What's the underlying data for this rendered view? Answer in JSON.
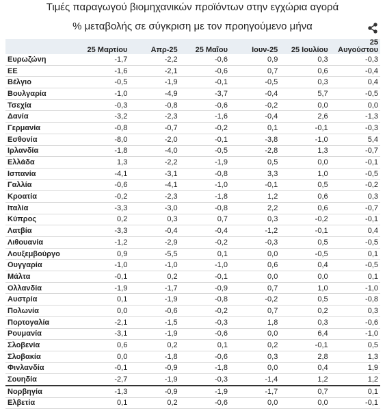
{
  "title": "Τιμές παραγωγού βιομηχανικών προϊόντων στην εγχώρια αγορά",
  "subtitle": "% μεταβολής σε σύγκριση με τον προηγούμενο μήνα",
  "table": {
    "header": [
      "25 Μαρτίου",
      "Απρ-25",
      "25 Μαΐου",
      "Ιουν-25",
      "25 Ιουλίου",
      "25 Αυγούστου"
    ],
    "rows": [
      [
        "Ευρωζώνη",
        "-1,7",
        "-2,2",
        "-0,6",
        "0,9",
        "0,3",
        "-0,3"
      ],
      [
        "ΕΕ",
        "-1,6",
        "-2,1",
        "-0,6",
        "0,7",
        "0,6",
        "-0,4"
      ],
      [
        "Βέλγιο",
        "-0,5",
        "-1,9",
        "-0,1",
        "-0,5",
        "0,3",
        "0,4"
      ],
      [
        "Βουλγαρία",
        "-1,0",
        "-4,9",
        "-3,7",
        "-0,4",
        "5,7",
        "-0,5"
      ],
      [
        "Τσεχία",
        "-0,3",
        "-0,8",
        "-0,6",
        "-0,2",
        "0,0",
        "0,0"
      ],
      [
        "Δανία",
        "-3,2",
        "-2,3",
        "-1,6",
        "-0,4",
        "2,6",
        "-1,3"
      ],
      [
        "Γερμανία",
        "-0,8",
        "-0,7",
        "-0,2",
        "0,1",
        "-0,1",
        "-0,3"
      ],
      [
        "Εσθονία",
        "-8,0",
        "-2,0",
        "-0,1",
        "-3,8",
        "-1,0",
        "5,4"
      ],
      [
        "Ιρλανδία",
        "-1,8",
        "-4,0",
        "-0,5",
        "-2,8",
        "1,3",
        "-0,7"
      ],
      [
        "Ελλάδα",
        "1,3",
        "-2,2",
        "-1,9",
        "0,5",
        "0,0",
        "-0,1"
      ],
      [
        "Ισπανία",
        "-4,1",
        "-3,1",
        "-0,8",
        "3,3",
        "1,0",
        "-0,5"
      ],
      [
        "Γαλλία",
        "-0,6",
        "-4,1",
        "-1,0",
        "-0,1",
        "0,5",
        "-0,2"
      ],
      [
        "Κροατία",
        "-0,2",
        "-2,3",
        "-1,8",
        "1,2",
        "0,6",
        "0,3"
      ],
      [
        "Ιταλία",
        "-3,3",
        "-3,0",
        "-0,8",
        "2,2",
        "0,6",
        "-0,7"
      ],
      [
        "Κύπρος",
        "0,2",
        "0,3",
        "0,7",
        "0,3",
        "-0,2",
        "-0,1"
      ],
      [
        "Λατβία",
        "-3,3",
        "-0,4",
        "-0,4",
        "-1,2",
        "-0,1",
        "0,4"
      ],
      [
        "Λιθουανία",
        "-1,2",
        "-2,9",
        "-0,2",
        "-0,3",
        "0,5",
        "-0,5"
      ],
      [
        "Λουξεμβούργο",
        "0,9",
        "-5,5",
        "0,1",
        "0,0",
        "-0,5",
        "0,1"
      ],
      [
        "Ουγγαρία",
        "-1,0",
        "-1,0",
        "-1,0",
        "0,6",
        "0,4",
        "-0,5"
      ],
      [
        "Μάλτα",
        "-0,1",
        "0,2",
        "-0,1",
        "0,0",
        "0,0",
        "0,1"
      ],
      [
        "Ολλανδία",
        "-1,9",
        "-1,7",
        "-0,9",
        "0,7",
        "1,0",
        "-1,0"
      ],
      [
        "Αυστρία",
        "0,1",
        "-1,9",
        "-0,8",
        "-0,2",
        "0,5",
        "-0,8"
      ],
      [
        "Πολωνία",
        "0,0",
        "-0,6",
        "-0,2",
        "0,7",
        "0,2",
        "0,3"
      ],
      [
        "Πορτογαλία",
        "-2,1",
        "-1,5",
        "-0,3",
        "1,8",
        "0,3",
        "-0,6"
      ],
      [
        "Ρουμανία",
        "-3,1",
        "-1,9",
        "-0,6",
        "0,0",
        "6,4",
        "-1,0"
      ],
      [
        "Σλοβενία",
        "0,6",
        "0,2",
        "0,1",
        "0,2",
        "-0,1",
        "0,5"
      ],
      [
        "Σλοβακία",
        "0,0",
        "-1,8",
        "-0,6",
        "0,3",
        "2,8",
        "1,3"
      ],
      [
        "Φινλανδία",
        "-0,1",
        "-0,9",
        "-1,8",
        "0,0",
        "0,4",
        "1,9"
      ],
      [
        "Σουηδία",
        "-2,7",
        "-1,9",
        "-0,3",
        "-1,4",
        "1,2",
        "1,2"
      ],
      [
        "Νορβηγία",
        "-1,3",
        "-0,9",
        "-1,9",
        "-1,7",
        "0,7",
        "0,1"
      ],
      [
        "Ελβετία",
        "0,1",
        "0,2",
        "-0,6",
        "0,0",
        "0,0",
        "-0,1"
      ]
    ]
  }
}
